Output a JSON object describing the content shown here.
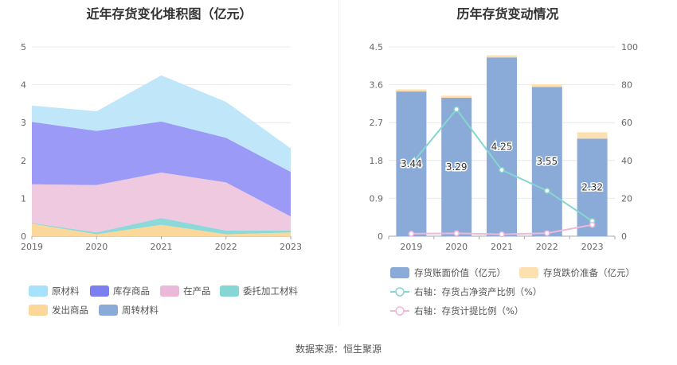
{
  "left_title": "近年存货变化堆积图（亿元）",
  "right_title": "历年存货变动情况",
  "source": "数据来源：恒生聚源",
  "chart_data": [
    {
      "type": "area",
      "stacked": true,
      "title": "近年存货变化堆积图（亿元）",
      "x": [
        "2019",
        "2020",
        "2021",
        "2022",
        "2023"
      ],
      "yticks": [
        "0",
        "1",
        "2",
        "3",
        "4",
        "5"
      ],
      "ylim": [
        0,
        5
      ],
      "grid": true,
      "legend_position": "bottom",
      "series": [
        {
          "name": "发出商品",
          "color": "#fbd89a",
          "values": [
            0.33,
            0.05,
            0.3,
            0.05,
            0.1
          ]
        },
        {
          "name": "委托加工材料",
          "color": "#8dd8d8",
          "values": [
            0.02,
            0.05,
            0.18,
            0.1,
            0.05
          ]
        },
        {
          "name": "在产品",
          "color": "#efc9e0",
          "values": [
            1.02,
            1.25,
            1.2,
            1.27,
            0.37
          ]
        },
        {
          "name": "库存商品",
          "color": "#9b9bf7",
          "values": [
            1.65,
            1.43,
            1.35,
            1.18,
            1.18
          ]
        },
        {
          "name": "原材料",
          "color": "#c0e6fa",
          "values": [
            0.43,
            0.52,
            1.22,
            0.95,
            0.62
          ]
        },
        {
          "name": "周转材料",
          "color": "#8aabd8",
          "values": [
            0,
            0,
            0,
            0,
            0
          ]
        }
      ],
      "legend_order": [
        "原材料",
        "库存商品",
        "在产品",
        "委托加工材料",
        "发出商品",
        "周转材料"
      ],
      "legend_colors": {
        "原材料": "#a6e2fb",
        "库存商品": "#7b7ff0",
        "在产品": "#ecb8da",
        "委托加工材料": "#86d6d6",
        "发出商品": "#fbd89a",
        "周转材料": "#8aabd8"
      }
    },
    {
      "type": "bar",
      "stacked": true,
      "title": "历年存货变动情况",
      "categories": [
        "2019",
        "2020",
        "2021",
        "2022",
        "2023"
      ],
      "left_ylim": [
        0,
        4.5
      ],
      "left_yticks": [
        "0",
        "0.9",
        "1.8",
        "2.7",
        "3.6",
        "4.5"
      ],
      "right_ylim": [
        0,
        100
      ],
      "right_yticks": [
        "0",
        "20",
        "40",
        "60",
        "80",
        "100"
      ],
      "grid": true,
      "legend_position": "bottom",
      "series": [
        {
          "name": "存货账面价值（亿元）",
          "type": "bar",
          "axis": "left",
          "color": "#8aabd8",
          "values": [
            3.44,
            3.29,
            4.25,
            3.55,
            2.32
          ],
          "labels": [
            "3.44",
            "3.29",
            "4.25",
            "3.55",
            "2.32"
          ]
        },
        {
          "name": "存货跌价准备（亿元）",
          "type": "bar",
          "axis": "left",
          "color": "#fde0b0",
          "values": [
            0.05,
            0.05,
            0.05,
            0.06,
            0.15
          ]
        },
        {
          "name": "右轴：存货占净资产比例（%）",
          "type": "line",
          "axis": "right",
          "color": "#86d6d0",
          "values": [
            38,
            67,
            35,
            24,
            8
          ]
        },
        {
          "name": "右轴：存货计提比例（%）",
          "type": "line",
          "axis": "right",
          "color": "#f0b8d8",
          "values": [
            1.3,
            1.5,
            1.0,
            1.6,
            6.0
          ]
        }
      ]
    }
  ]
}
